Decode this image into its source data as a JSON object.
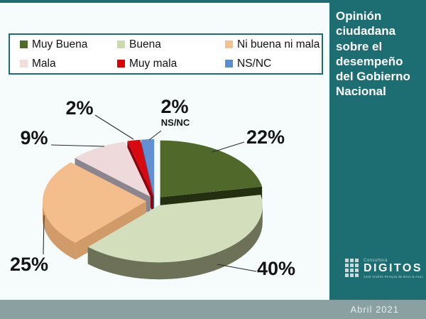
{
  "slide": {
    "background": "#f6fbfb",
    "accent_teal": "#1d6e73",
    "footer": {
      "label": "Abril 2021",
      "background": "#8ba1a1",
      "text_color": "#e4eeee"
    }
  },
  "sidebar": {
    "title": "Opinión ciudadana sobre el desempeño del Gobierno Nacional",
    "background": "#1d6e73",
    "logo": {
      "top": "Consultora",
      "name": "DIGITOS",
      "subtitle": "José Andrés Pereyra de Brun & Asoc",
      "icon": "grid-of-squares-icon"
    }
  },
  "chart_data": {
    "type": "pie",
    "style": "3d-exploded",
    "title": "Opinión ciudadana sobre el desempeño del Gobierno Nacional",
    "start_angle_deg": 0,
    "direction": "clockwise",
    "legend_position": "top",
    "categories": [
      "Muy Buena",
      "Buena",
      "Ni buena ni mala",
      "Mala",
      "Muy mala",
      "NS/NC"
    ],
    "values": [
      22,
      40,
      25,
      9,
      2,
      2
    ],
    "slices": [
      {
        "label": "Muy Buena",
        "value": 22,
        "pct_label": "22%",
        "color": "#50682a",
        "side_color": "#232f10",
        "legend_color": "#4f6b28"
      },
      {
        "label": "Buena",
        "value": 40,
        "pct_label": "40%",
        "color": "#d3dfbc",
        "side_color": "#6c7157",
        "legend_color": "#cbdcaa"
      },
      {
        "label": "Ni buena ni mala",
        "value": 25,
        "pct_label": "25%",
        "color": "#f3bd8c",
        "side_color": "#d09b68",
        "legend_color": "#f5c08c"
      },
      {
        "label": "Mala",
        "value": 9,
        "pct_label": "9%",
        "color": "#eedada",
        "side_color": "#8a858f",
        "legend_color": "#f2dddd"
      },
      {
        "label": "Muy mala",
        "value": 2,
        "pct_label": "2%",
        "color": "#d80a10",
        "side_color": "#8e040c",
        "legend_color": "#dd0000"
      },
      {
        "label": "NS/NC",
        "value": 2,
        "pct_label": "2%",
        "color": "#6290d2",
        "side_color": "#3a6cb0",
        "legend_color": "#5b8bd0",
        "callout_note": "NS/NC"
      }
    ]
  }
}
